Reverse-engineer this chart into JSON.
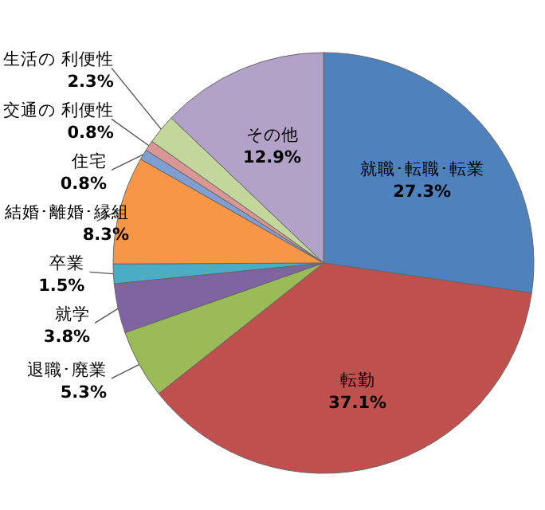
{
  "chart_data": {
    "type": "pie",
    "categories": [
      "就職･転職･転業",
      "転勤",
      "退職･廃業",
      "就学",
      "卒業",
      "結婚･離婚･縁組",
      "住宅",
      "交通の 利便性",
      "生活の 利便性",
      "その他"
    ],
    "values": [
      27.3,
      37.1,
      5.3,
      3.8,
      1.5,
      8.3,
      0.8,
      0.8,
      2.3,
      12.9
    ],
    "value_labels": [
      "27.3%",
      "37.1%",
      "5.3%",
      "3.8%",
      "1.5%",
      "8.3%",
      "0.8%",
      "0.8%",
      "2.3%",
      "12.9%"
    ],
    "colors": [
      "#4f81bd",
      "#c0504d",
      "#9bbb59",
      "#8064a2",
      "#4bacc6",
      "#f79646",
      "#7f9fd3",
      "#d99694",
      "#c3d69b",
      "#b3a2c7"
    ]
  }
}
